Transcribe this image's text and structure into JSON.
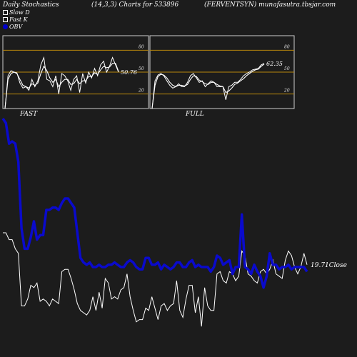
{
  "header": {
    "title": "Daily Stochastics",
    "params": "(14,3,3) Charts for 533896",
    "ticker": "(FERVENTSYN) munafasutra.tbsjar.com"
  },
  "legend": [
    {
      "label": "Slow D",
      "color": "#ffffff",
      "style": "outline"
    },
    {
      "label": "Fast K",
      "color": "#ffffff",
      "style": "outline"
    },
    {
      "label": "OBV",
      "color": "#0000cc",
      "style": "fill"
    }
  ],
  "colors": {
    "background": "#1c1c1c",
    "guide": "#b8860b",
    "obv": "#0a0acc",
    "line": "#ffffff",
    "panel_border": "#cccccc"
  },
  "chart_data": [
    {
      "type": "line",
      "panel": "fast",
      "title": "FAST",
      "ylim": [
        0,
        100
      ],
      "guides": [
        80,
        50,
        20
      ],
      "tick_labels": [
        "80",
        "50",
        "20"
      ],
      "end_label": "50.76",
      "series": [
        {
          "values": [
            0,
            45,
            52,
            50,
            49,
            35,
            28,
            30,
            25,
            40,
            30,
            38,
            60,
            70,
            40,
            38,
            30,
            45,
            20,
            48,
            45,
            38,
            25,
            40,
            45,
            22,
            48,
            35,
            50,
            42,
            55,
            45,
            60,
            65,
            50,
            58,
            70,
            60,
            50
          ]
        },
        {
          "values": [
            0,
            40,
            48,
            50,
            48,
            40,
            32,
            30,
            28,
            34,
            32,
            35,
            48,
            58,
            52,
            42,
            36,
            40,
            30,
            36,
            40,
            40,
            33,
            34,
            40,
            34,
            38,
            38,
            44,
            44,
            49,
            47,
            53,
            58,
            56,
            57,
            62,
            62,
            51
          ]
        }
      ]
    },
    {
      "type": "line",
      "panel": "full",
      "title": "FULL",
      "ylim": [
        0,
        100
      ],
      "guides": [
        80,
        50,
        20
      ],
      "tick_labels": [
        "80",
        "50",
        "20"
      ],
      "end_label": "62.35",
      "series": [
        {
          "values": [
            0,
            38,
            46,
            48,
            45,
            38,
            32,
            28,
            30,
            34,
            30,
            30,
            36,
            45,
            48,
            42,
            36,
            38,
            30,
            34,
            38,
            36,
            30,
            30,
            30,
            12,
            30,
            32,
            36,
            36,
            40,
            45,
            48,
            50,
            53,
            54,
            55,
            60,
            62
          ]
        },
        {
          "values": [
            0,
            32,
            44,
            47,
            46,
            42,
            36,
            32,
            30,
            32,
            32,
            31,
            33,
            40,
            45,
            44,
            39,
            37,
            34,
            33,
            36,
            36,
            33,
            31,
            30,
            22,
            24,
            28,
            33,
            35,
            38,
            41,
            45,
            48,
            51,
            53,
            54,
            58,
            61
          ]
        }
      ]
    },
    {
      "type": "line",
      "panel": "main",
      "end_label": "19.71Close",
      "series": [
        {
          "name": "OBV",
          "values": [
            0.95,
            0.93,
            0.84,
            0.85,
            0.84,
            0.76,
            0.47,
            0.38,
            0.38,
            0.43,
            0.5,
            0.42,
            0.44,
            0.44,
            0.55,
            0.55,
            0.56,
            0.56,
            0.55,
            0.58,
            0.6,
            0.6,
            0.58,
            0.56,
            0.45,
            0.34,
            0.32,
            0.31,
            0.32,
            0.3,
            0.3,
            0.31,
            0.3,
            0.3,
            0.31,
            0.31,
            0.32,
            0.31,
            0.3,
            0.3,
            0.32,
            0.33,
            0.32,
            0.3,
            0.29,
            0.29,
            0.34,
            0.34,
            0.31,
            0.31,
            0.32,
            0.29,
            0.31,
            0.3,
            0.29,
            0.3,
            0.32,
            0.32,
            0.3,
            0.3,
            0.32,
            0.33,
            0.3,
            0.31,
            0.3,
            0.3,
            0.3,
            0.28,
            0.3,
            0.35,
            0.34,
            0.31,
            0.32,
            0.33,
            0.27,
            0.3,
            0.3,
            0.53,
            0.3,
            0.29,
            0.27,
            0.31,
            0.28,
            0.26,
            0.21,
            0.26,
            0.36,
            0.31,
            0.31,
            0.29,
            0.3,
            0.3,
            0.31,
            0.29,
            0.3,
            0.3,
            0.3,
            0.3,
            0.28
          ]
        },
        {
          "name": "Close",
          "values": [
            0.45,
            0.45,
            0.42,
            0.42,
            0.38,
            0.36,
            0.13,
            0.13,
            0.16,
            0.22,
            0.21,
            0.23,
            0.15,
            0.16,
            0.15,
            0.13,
            0.16,
            0.15,
            0.14,
            0.28,
            0.29,
            0.29,
            0.25,
            0.2,
            0.14,
            0.11,
            0.1,
            0.09,
            0.11,
            0.17,
            0.11,
            0.19,
            0.12,
            0.25,
            0.23,
            0.16,
            0.17,
            0.16,
            0.2,
            0.21,
            0.27,
            0.17,
            0.11,
            0.06,
            0.07,
            0.07,
            0.12,
            0.11,
            0.17,
            0.12,
            0.07,
            0.13,
            0.14,
            0.11,
            0.13,
            0.14,
            0.24,
            0.11,
            0.08,
            0.16,
            0.22,
            0.22,
            0.1,
            0.17,
            0.04,
            0.21,
            0.13,
            0.11,
            0.11,
            0.27,
            0.28,
            0.24,
            0.23,
            0.28,
            0.27,
            0.24,
            0.26,
            0.37,
            0.35,
            0.27,
            0.26,
            0.24,
            0.23,
            0.28,
            0.29,
            0.27,
            0.29,
            0.33,
            0.27,
            0.26,
            0.25,
            0.33,
            0.37,
            0.35,
            0.3,
            0.27,
            0.3,
            0.36,
            0.31
          ]
        }
      ]
    }
  ]
}
